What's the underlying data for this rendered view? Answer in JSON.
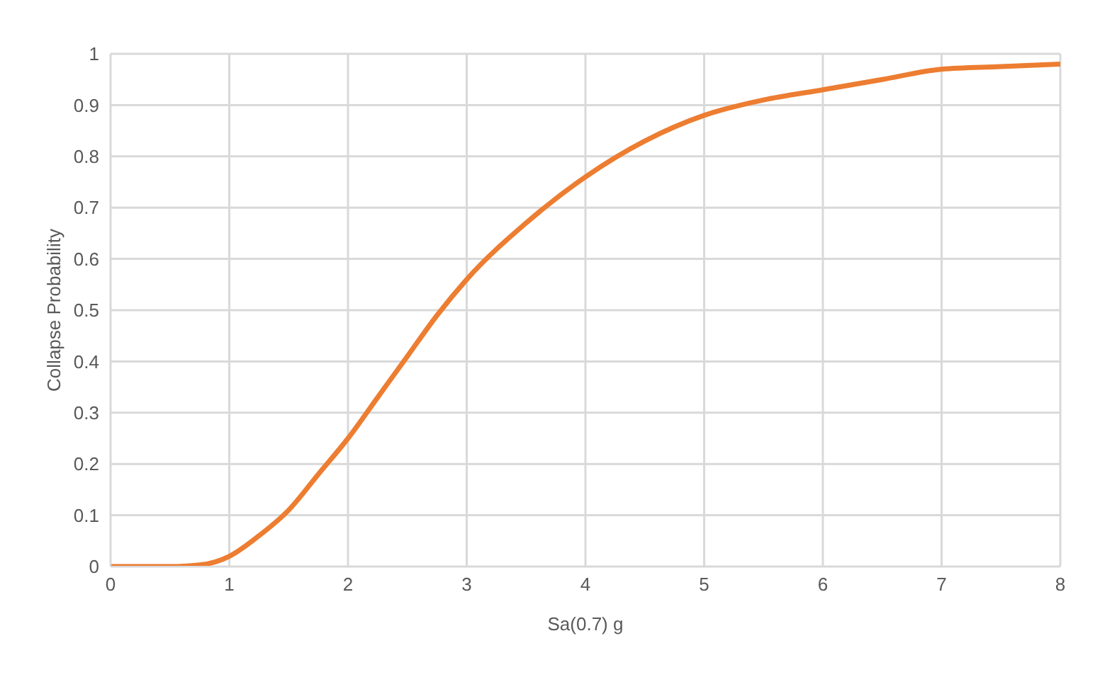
{
  "chart_data": {
    "type": "line",
    "xlabel": "Sa(0.7) g",
    "ylabel": "Collapse Probability",
    "x": [
      0,
      0.25,
      0.5,
      0.75,
      1,
      1.25,
      1.5,
      1.75,
      2,
      2.25,
      2.5,
      2.75,
      3,
      3.5,
      4,
      4.5,
      5,
      5.5,
      6,
      6.5,
      7,
      7.5,
      8
    ],
    "series": [
      {
        "color": "#ed7d31",
        "values": [
          0,
          0,
          0,
          0.003,
          0.02,
          0.06,
          0.11,
          0.18,
          0.25,
          0.33,
          0.41,
          0.49,
          0.56,
          0.67,
          0.76,
          0.83,
          0.88,
          0.91,
          0.93,
          0.95,
          0.97,
          0.975,
          0.98
        ]
      }
    ],
    "xlim": [
      0,
      8
    ],
    "xticks": [
      0,
      1,
      2,
      3,
      4,
      5,
      6,
      7,
      8
    ],
    "ylim": [
      0,
      1
    ],
    "yticks": [
      0,
      0.1,
      0.2,
      0.3,
      0.4,
      0.5,
      0.6,
      0.7,
      0.8,
      0.9,
      1
    ],
    "grid": true,
    "marker": "none",
    "line_style": "solid",
    "legend": false
  }
}
